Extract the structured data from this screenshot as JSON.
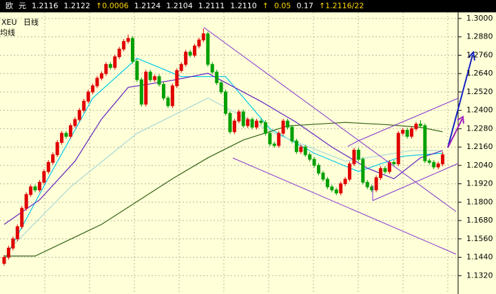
{
  "header": {
    "items": [
      "欧",
      "元",
      "1.2116",
      "1.2122",
      "↑0.0006",
      "1.2124",
      "1.2104",
      "1.2111",
      "1.2110",
      "↑",
      "0.05",
      "0.17",
      "↑1.2116/22"
    ]
  },
  "chart_data": {
    "type": "candlestick",
    "symbol": "XEU",
    "period": "日线",
    "indicator": "均线",
    "up_color": "#e00000",
    "down_color": "#00a000",
    "grid": true,
    "ylim": [
      1.12,
      1.304
    ],
    "yticks": [
      {
        "value": 1.3,
        "label": "1.3000"
      },
      {
        "value": 1.288,
        "label": "1.2880"
      },
      {
        "value": 1.276,
        "label": "1.2760"
      },
      {
        "value": 1.264,
        "label": "1.2640"
      },
      {
        "value": 1.252,
        "label": "1.2520"
      },
      {
        "value": 1.24,
        "label": "1.2400"
      },
      {
        "value": 1.228,
        "label": "1.2280"
      },
      {
        "value": 1.216,
        "label": "1.2160"
      },
      {
        "value": 1.204,
        "label": "1.2040"
      },
      {
        "value": 1.192,
        "label": "1.1920"
      },
      {
        "value": 1.18,
        "label": "1.1800"
      },
      {
        "value": 1.168,
        "label": "1.1680"
      },
      {
        "value": 1.156,
        "label": "1.1560"
      },
      {
        "value": 1.144,
        "label": "1.1440"
      },
      {
        "value": 1.132,
        "label": "1.1320"
      }
    ],
    "ohlc": [
      [
        1.14,
        1.1455,
        1.1385,
        1.144
      ],
      [
        1.144,
        1.1515,
        1.1425,
        1.15
      ],
      [
        1.15,
        1.1575,
        1.1485,
        1.156
      ],
      [
        1.156,
        1.1655,
        1.1545,
        1.164
      ],
      [
        1.164,
        1.1775,
        1.1625,
        1.176
      ],
      [
        1.176,
        1.1865,
        1.1745,
        1.185
      ],
      [
        1.185,
        1.1915,
        1.1835,
        1.19
      ],
      [
        1.19,
        1.1915,
        1.1865,
        1.188
      ],
      [
        1.188,
        1.1945,
        1.1865,
        1.193
      ],
      [
        1.193,
        1.2015,
        1.1915,
        1.2
      ],
      [
        1.2,
        1.2075,
        1.1985,
        1.206
      ],
      [
        1.206,
        1.2125,
        1.2045,
        1.211
      ],
      [
        1.211,
        1.2205,
        1.2095,
        1.219
      ],
      [
        1.219,
        1.2265,
        1.2175,
        1.225
      ],
      [
        1.225,
        1.2265,
        1.2215,
        1.223
      ],
      [
        1.223,
        1.2315,
        1.2215,
        1.23
      ],
      [
        1.23,
        1.2355,
        1.2285,
        1.234
      ],
      [
        1.234,
        1.2415,
        1.2325,
        1.24
      ],
      [
        1.24,
        1.2475,
        1.2385,
        1.246
      ],
      [
        1.246,
        1.2535,
        1.2445,
        1.252
      ],
      [
        1.252,
        1.2575,
        1.2505,
        1.256
      ],
      [
        1.256,
        1.2625,
        1.2545,
        1.261
      ],
      [
        1.261,
        1.2655,
        1.2595,
        1.264
      ],
      [
        1.264,
        1.2715,
        1.2625,
        1.27
      ],
      [
        1.27,
        1.2715,
        1.2665,
        1.268
      ],
      [
        1.268,
        1.2765,
        1.2665,
        1.275
      ],
      [
        1.275,
        1.2815,
        1.2735,
        1.28
      ],
      [
        1.28,
        1.2865,
        1.2785,
        1.285
      ],
      [
        1.285,
        1.2895,
        1.2835,
        1.287
      ],
      [
        1.287,
        1.2885,
        1.2705,
        1.272
      ],
      [
        1.272,
        1.2735,
        1.2585,
        1.26
      ],
      [
        1.26,
        1.2615,
        1.2425,
        1.244
      ],
      [
        1.244,
        1.2665,
        1.2425,
        1.265
      ],
      [
        1.265,
        1.2665,
        1.2585,
        1.26
      ],
      [
        1.26,
        1.2635,
        1.2585,
        1.262
      ],
      [
        1.262,
        1.2635,
        1.2555,
        1.257
      ],
      [
        1.257,
        1.2585,
        1.2465,
        1.248
      ],
      [
        1.248,
        1.2495,
        1.2415,
        1.243
      ],
      [
        1.243,
        1.2575,
        1.2415,
        1.256
      ],
      [
        1.256,
        1.2675,
        1.2545,
        1.266
      ],
      [
        1.266,
        1.2715,
        1.2645,
        1.27
      ],
      [
        1.27,
        1.2795,
        1.2685,
        1.278
      ],
      [
        1.278,
        1.2795,
        1.2745,
        1.276
      ],
      [
        1.276,
        1.2835,
        1.2745,
        1.282
      ],
      [
        1.282,
        1.2875,
        1.2805,
        1.286
      ],
      [
        1.286,
        1.2935,
        1.2845,
        1.29
      ],
      [
        1.29,
        1.2915,
        1.2685,
        1.27
      ],
      [
        1.27,
        1.2715,
        1.2635,
        1.265
      ],
      [
        1.265,
        1.2665,
        1.2565,
        1.258
      ],
      [
        1.258,
        1.2595,
        1.2505,
        1.252
      ],
      [
        1.252,
        1.2535,
        1.2365,
        1.238
      ],
      [
        1.238,
        1.2395,
        1.2245,
        1.226
      ],
      [
        1.226,
        1.2345,
        1.2245,
        1.233
      ],
      [
        1.233,
        1.2405,
        1.2315,
        1.239
      ],
      [
        1.239,
        1.2405,
        1.2285,
        1.23
      ],
      [
        1.23,
        1.2355,
        1.2285,
        1.234
      ],
      [
        1.234,
        1.2355,
        1.2275,
        1.229
      ],
      [
        1.229,
        1.2345,
        1.2275,
        1.233
      ],
      [
        1.233,
        1.2345,
        1.2305,
        1.232
      ],
      [
        1.232,
        1.2335,
        1.2235,
        1.225
      ],
      [
        1.225,
        1.2265,
        1.2165,
        1.218
      ],
      [
        1.218,
        1.2195,
        1.2155,
        1.217
      ],
      [
        1.217,
        1.2265,
        1.2155,
        1.225
      ],
      [
        1.225,
        1.2345,
        1.2235,
        1.233
      ],
      [
        1.233,
        1.2345,
        1.2275,
        1.229
      ],
      [
        1.229,
        1.2305,
        1.2185,
        1.22
      ],
      [
        1.22,
        1.2215,
        1.2115,
        1.213
      ],
      [
        1.213,
        1.2175,
        1.2115,
        1.216
      ],
      [
        1.216,
        1.2175,
        1.2095,
        1.211
      ],
      [
        1.211,
        1.2125,
        1.2065,
        1.208
      ],
      [
        1.208,
        1.2095,
        1.2025,
        1.204
      ],
      [
        1.204,
        1.2055,
        1.1975,
        1.199
      ],
      [
        1.199,
        1.2005,
        1.1935,
        1.195
      ],
      [
        1.195,
        1.1965,
        1.1885,
        1.19
      ],
      [
        1.19,
        1.1915,
        1.1865,
        1.188
      ],
      [
        1.188,
        1.1895,
        1.1845,
        1.186
      ],
      [
        1.186,
        1.1935,
        1.1845,
        1.192
      ],
      [
        1.192,
        1.1965,
        1.1905,
        1.195
      ],
      [
        1.195,
        1.2065,
        1.1935,
        1.205
      ],
      [
        1.205,
        1.2155,
        1.2035,
        1.214
      ],
      [
        1.214,
        1.2155,
        1.2065,
        1.208
      ],
      [
        1.208,
        1.2095,
        1.1915,
        1.193
      ],
      [
        1.193,
        1.1945,
        1.1885,
        1.19
      ],
      [
        1.19,
        1.1915,
        1.1865,
        1.188
      ],
      [
        1.188,
        1.1975,
        1.1865,
        1.196
      ],
      [
        1.196,
        1.2035,
        1.1945,
        1.202
      ],
      [
        1.202,
        1.2035,
        1.1985,
        1.2
      ],
      [
        1.2,
        1.2075,
        1.1985,
        1.206
      ],
      [
        1.206,
        1.2075,
        1.2035,
        1.205
      ],
      [
        1.205,
        1.2265,
        1.2035,
        1.225
      ],
      [
        1.225,
        1.2285,
        1.2235,
        1.227
      ],
      [
        1.227,
        1.2285,
        1.2215,
        1.223
      ],
      [
        1.223,
        1.2295,
        1.2215,
        1.228
      ],
      [
        1.228,
        1.2325,
        1.2265,
        1.231
      ],
      [
        1.231,
        1.2335,
        1.2285,
        1.23
      ],
      [
        1.23,
        1.2315,
        1.2055,
        1.207
      ],
      [
        1.207,
        1.2085,
        1.2045,
        1.206
      ],
      [
        1.206,
        1.2075,
        1.2015,
        1.203
      ],
      [
        1.203,
        1.2065,
        1.2015,
        1.205
      ],
      [
        1.205,
        1.213,
        1.2035,
        1.211
      ]
    ],
    "series": [
      {
        "color": "#00c8e8",
        "x": [
          0,
          10,
          20,
          30,
          40,
          50,
          60,
          70,
          80,
          90,
          99
        ],
        "values": [
          1.142,
          1.196,
          1.248,
          1.274,
          1.262,
          1.262,
          1.228,
          1.212,
          1.2,
          1.21,
          1.212
        ]
      },
      {
        "color": "#a8d8d8",
        "x": [
          2,
          15,
          30,
          46,
          61,
          77,
          92,
          99
        ],
        "values": [
          1.1518,
          1.19,
          1.225,
          1.248,
          1.225,
          1.2068,
          1.2137,
          1.2137
        ]
      },
      {
        "color": "#6020c0",
        "x": [
          0,
          8,
          16,
          22,
          28,
          38,
          46,
          52,
          58,
          66,
          74,
          82,
          88,
          94,
          99
        ],
        "values": [
          1.1655,
          1.1815,
          1.2068,
          1.2343,
          1.255,
          1.2596,
          1.2642,
          1.255,
          1.2458,
          1.2321,
          1.216,
          1.2022,
          1.1953,
          1.209,
          1.2137
        ]
      },
      {
        "color": "#306010",
        "x": [
          0,
          7,
          22,
          38,
          46,
          54,
          64,
          77,
          86,
          94,
          99
        ],
        "values": [
          1.1448,
          1.1448,
          1.1655,
          1.1953,
          1.209,
          1.2206,
          1.2298,
          1.2321,
          1.2307,
          1.2289,
          1.226
        ]
      }
    ]
  }
}
